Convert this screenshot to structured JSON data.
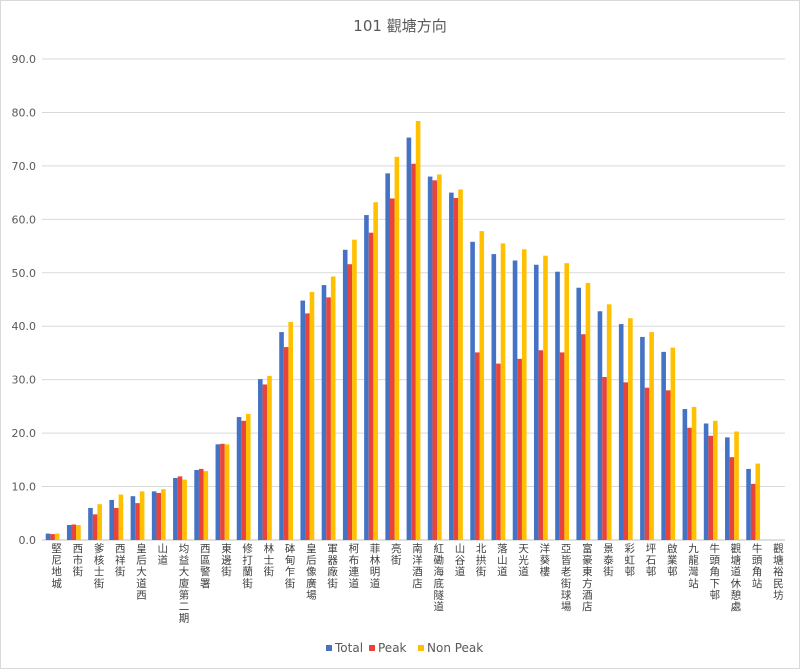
{
  "chart_data": {
    "type": "bar",
    "title": "101 觀塘方向",
    "xlabel": "",
    "ylabel": "",
    "ylim": [
      0,
      90
    ],
    "yticks": [
      "0.0",
      "10.0",
      "20.0",
      "30.0",
      "40.0",
      "50.0",
      "60.0",
      "70.0",
      "80.0",
      "90.0"
    ],
    "grid": true,
    "legend_position": "bottom",
    "categories": [
      "堅尼地城",
      "西市街",
      "爹核士街",
      "西祥街",
      "皇后大道西",
      "山道",
      "均益大廈第二期",
      "西區警署",
      "東邊街",
      "修打蘭街",
      "林士街",
      "砵甸乍街",
      "皇后像廣場",
      "軍器廠街",
      "柯布連道",
      "菲林明道",
      "亮街",
      "南洋酒店",
      "紅磡海底隧道",
      "山谷道",
      "北拱街",
      "落山道",
      "天光道",
      "洋葵樓",
      "亞皆老街球場",
      "富豪東方酒店",
      "景泰街",
      "彩虹邨",
      "坪石邨",
      "啟業邨",
      "九龍灣站",
      "牛頭角下邨",
      "觀塘道休憩處",
      "牛頭角站",
      "觀塘裕民坊"
    ],
    "series": [
      {
        "name": "Total",
        "color": "#4472C4",
        "values": [
          1.2,
          2.8,
          6.0,
          7.5,
          8.2,
          9.1,
          11.6,
          13.1,
          17.9,
          23.0,
          30.1,
          38.9,
          44.8,
          47.7,
          54.3,
          60.8,
          68.6,
          75.3,
          68.0,
          65.0,
          55.8,
          53.5,
          52.3,
          51.5,
          50.2,
          47.2,
          42.8,
          40.4,
          38.0,
          35.2,
          24.5,
          21.8,
          19.2,
          13.3,
          0
        ]
      },
      {
        "name": "Peak",
        "color": "#E8443A",
        "values": [
          1.1,
          2.9,
          4.8,
          6.0,
          6.9,
          8.8,
          11.9,
          13.3,
          18.0,
          22.3,
          29.1,
          36.1,
          42.4,
          45.4,
          51.6,
          57.5,
          63.9,
          70.4,
          67.3,
          64.0,
          35.1,
          33.0,
          33.9,
          35.5,
          35.1,
          38.5,
          30.5,
          29.5,
          28.5,
          28.0,
          21.0,
          19.5,
          15.5,
          10.5,
          0
        ]
      },
      {
        "name": "Non Peak",
        "color": "#FFC000",
        "values": [
          1.2,
          2.8,
          6.7,
          8.5,
          9.1,
          9.5,
          11.3,
          12.9,
          17.9,
          23.6,
          30.7,
          40.8,
          46.4,
          49.3,
          56.2,
          63.2,
          71.7,
          78.4,
          68.4,
          65.6,
          57.8,
          55.5,
          54.4,
          53.2,
          51.8,
          48.1,
          44.1,
          41.5,
          38.9,
          36.0,
          24.9,
          22.3,
          20.3,
          14.3,
          0
        ]
      }
    ]
  }
}
